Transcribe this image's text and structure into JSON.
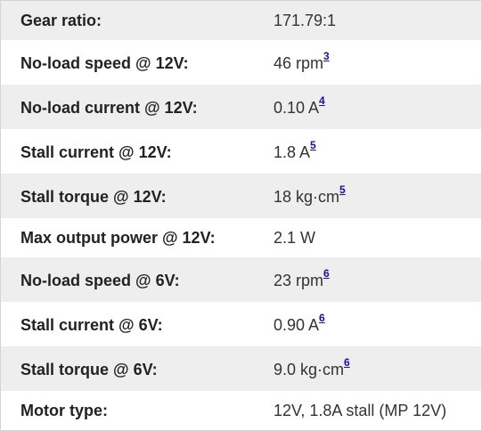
{
  "specs": [
    {
      "label": "Gear ratio:",
      "value": "171.79:1",
      "ref": ""
    },
    {
      "label": "No-load speed @ 12V:",
      "value": "46 rpm",
      "ref": "3"
    },
    {
      "label": "No-load current @ 12V:",
      "value": "0.10 A",
      "ref": "4"
    },
    {
      "label": "Stall current @ 12V:",
      "value": "1.8 A",
      "ref": "5"
    },
    {
      "label": "Stall torque @ 12V:",
      "value": "18 kg·cm",
      "ref": "5"
    },
    {
      "label": "Max output power @ 12V:",
      "value": "2.1 W",
      "ref": ""
    },
    {
      "label": "No-load speed @ 6V:",
      "value": "23 rpm",
      "ref": "6"
    },
    {
      "label": "Stall current @ 6V:",
      "value": "0.90 A",
      "ref": "6"
    },
    {
      "label": "Stall torque @ 6V:",
      "value": "9.0 kg·cm",
      "ref": "6"
    },
    {
      "label": "Motor type:",
      "value": "12V, 1.8A stall (MP 12V)",
      "ref": ""
    }
  ],
  "colors": {
    "row_shaded": "#eeeeee",
    "row_plain": "#ffffff",
    "footnote_link": "#1a0dab"
  }
}
